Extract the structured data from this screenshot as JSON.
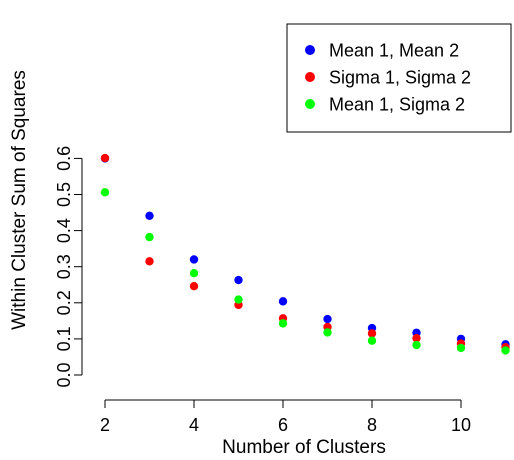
{
  "chart_data": {
    "type": "scatter",
    "title": "",
    "xlabel": "Number of Clusters",
    "ylabel": "Within Cluster Sum of Squares",
    "xlim": [
      2,
      11
    ],
    "ylim": [
      0,
      0.6
    ],
    "x_ticks": [
      "2",
      "4",
      "6",
      "8",
      "10"
    ],
    "y_ticks": [
      "0.0",
      "0.1",
      "0.2",
      "0.3",
      "0.4",
      "0.5",
      "0.6"
    ],
    "grid": false,
    "legend_position": "top-right",
    "x": [
      2,
      3,
      4,
      5,
      6,
      7,
      8,
      9,
      10,
      11
    ],
    "series": [
      {
        "name": "Mean 1, Mean 2",
        "color": "#0000ff",
        "values": [
          0.6,
          0.441,
          0.32,
          0.263,
          0.204,
          0.155,
          0.13,
          0.117,
          0.1,
          0.085
        ]
      },
      {
        "name": "Sigma 1, Sigma 2",
        "color": "#ff0000",
        "values": [
          0.601,
          0.315,
          0.246,
          0.194,
          0.157,
          0.133,
          0.115,
          0.102,
          0.087,
          0.077
        ]
      },
      {
        "name": "Mean 1, Sigma 2",
        "color": "#00ff00",
        "values": [
          0.506,
          0.382,
          0.282,
          0.209,
          0.143,
          0.118,
          0.095,
          0.083,
          0.075,
          0.068
        ]
      }
    ]
  }
}
